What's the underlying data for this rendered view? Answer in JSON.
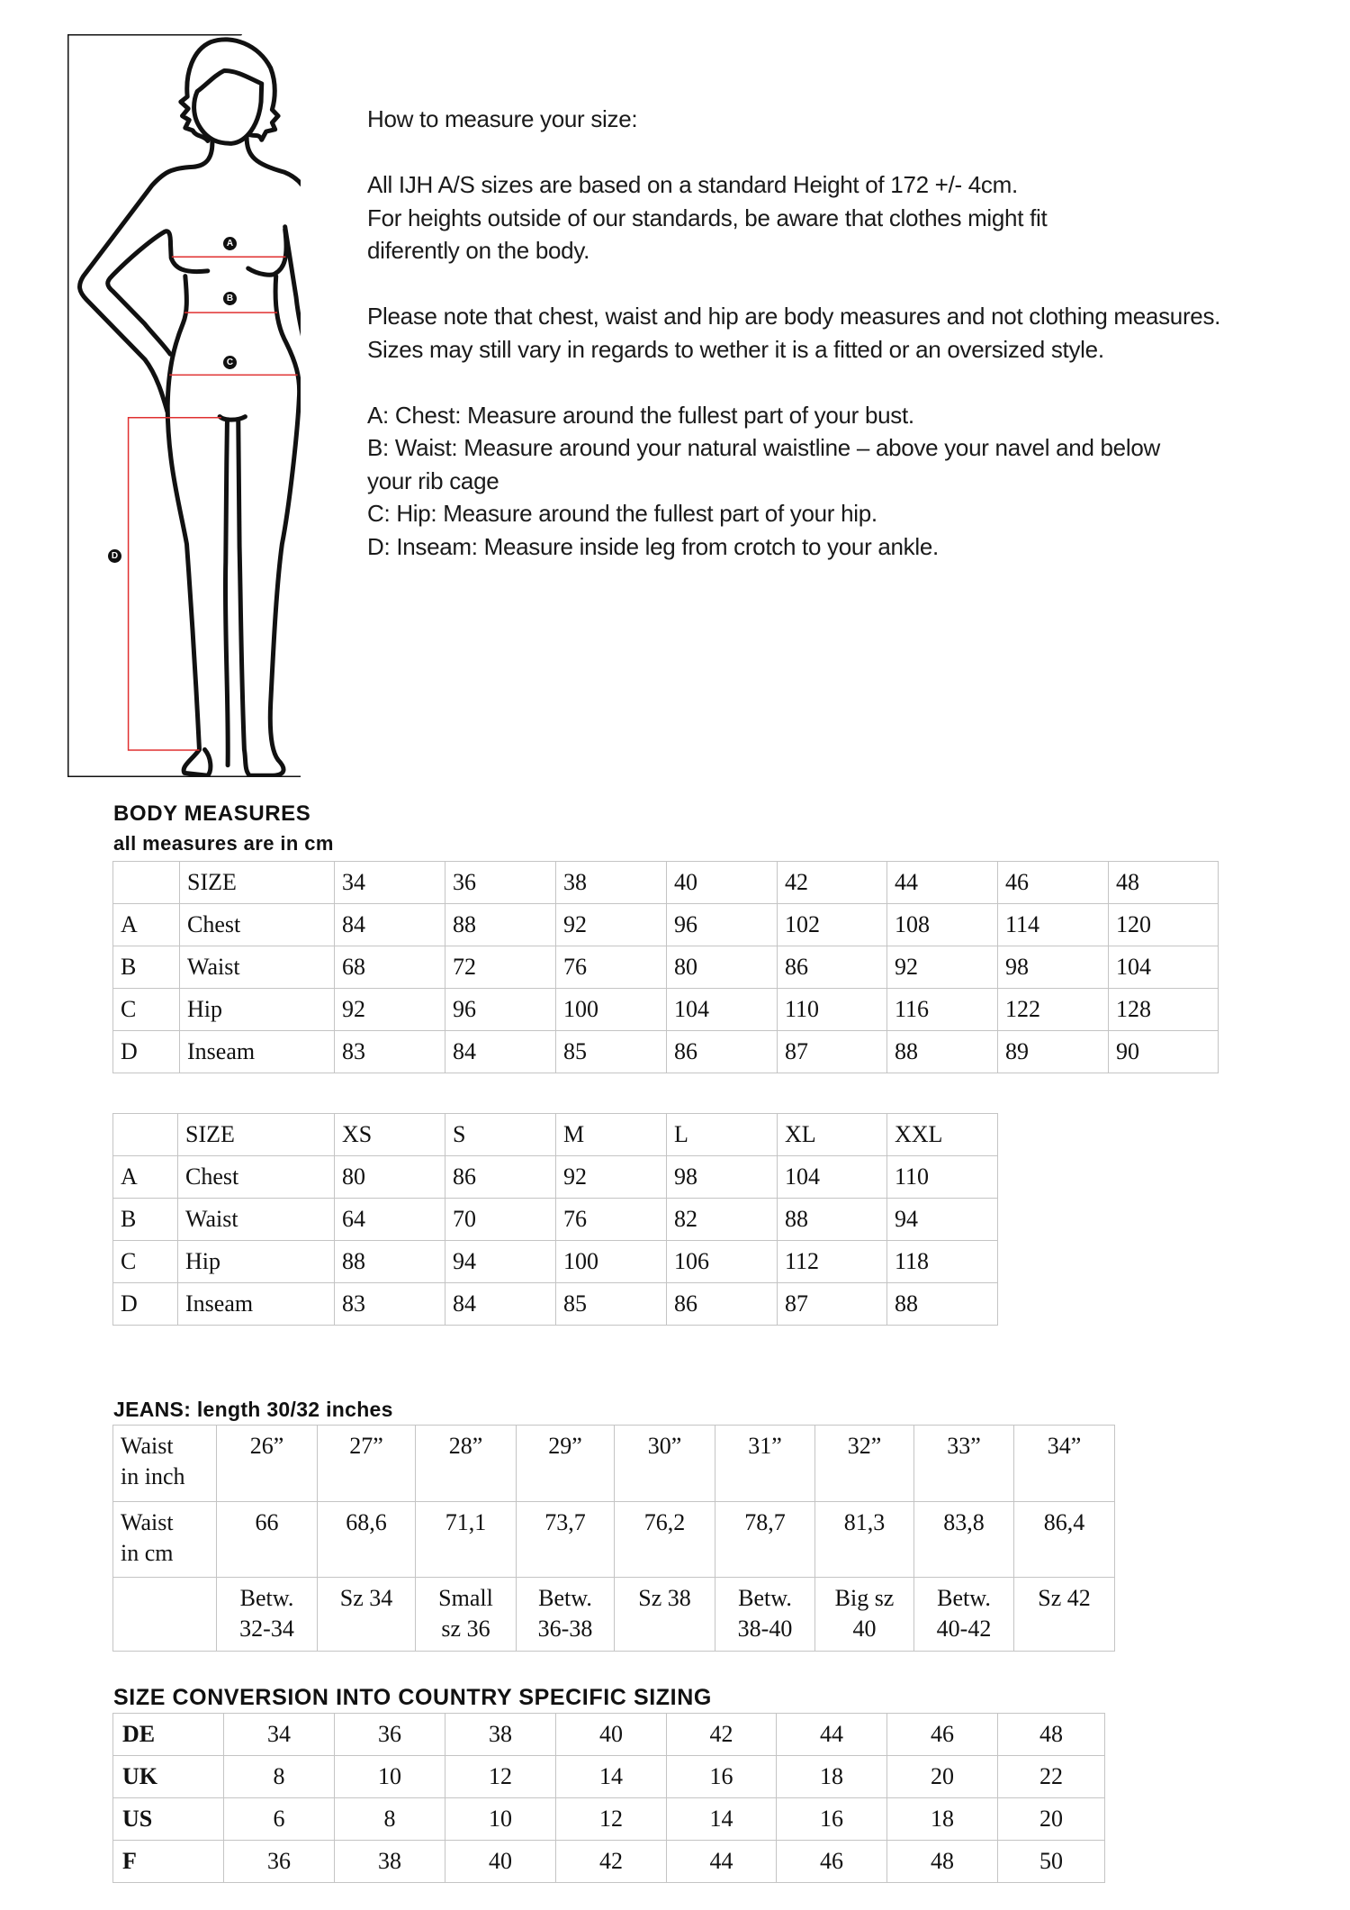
{
  "figure": {
    "badges": [
      "A",
      "B",
      "C",
      "D"
    ],
    "measure_line_color": "#e03030"
  },
  "intro": {
    "title": "How to measure your size:",
    "para1": [
      "All IJH A/S sizes are based on a standard Height of 172 +/- 4cm.",
      "For heights outside of our standards, be aware that clothes might fit",
      "diferently on the body."
    ],
    "para2": [
      "Please note that chest, waist and hip are body measures and not clothing measures.",
      "Sizes may still vary in regards to wether it is a fitted or an oversized style."
    ],
    "para3": [
      "A: Chest: Measure around the fullest part of your bust.",
      "B: Waist: Measure around your natural waistline – above your navel and below",
      "your rib cage",
      "C: Hip: Measure around the fullest part of your hip.",
      "D: Inseam: Measure inside leg from crotch to your ankle."
    ]
  },
  "body_measures": {
    "heading": "BODY MEASURES",
    "subheading": "all measures are in cm",
    "numeric_table": [
      [
        "",
        "SIZE",
        "34",
        "36",
        "38",
        "40",
        "42",
        "44",
        "46",
        "48"
      ],
      [
        "A",
        "Chest",
        "84",
        "88",
        "92",
        "96",
        "102",
        "108",
        "114",
        "120"
      ],
      [
        "B",
        "Waist",
        "68",
        "72",
        "76",
        "80",
        "86",
        "92",
        "98",
        "104"
      ],
      [
        "C",
        "Hip",
        "92",
        "96",
        "100",
        "104",
        "110",
        "116",
        "122",
        "128"
      ],
      [
        "D",
        "Inseam",
        "83",
        "84",
        "85",
        "86",
        "87",
        "88",
        "89",
        "90"
      ]
    ],
    "letter_table": [
      [
        "",
        "SIZE",
        "XS",
        "S",
        "M",
        "L",
        "XL",
        "XXL"
      ],
      [
        "A",
        "Chest",
        "80",
        "86",
        "92",
        "98",
        "104",
        "110"
      ],
      [
        "B",
        "Waist",
        "64",
        "70",
        "76",
        "82",
        "88",
        "94"
      ],
      [
        "C",
        "Hip",
        "88",
        "94",
        "100",
        "106",
        "112",
        "118"
      ],
      [
        "D",
        "Inseam",
        "83",
        "84",
        "85",
        "86",
        "87",
        "88"
      ]
    ]
  },
  "jeans": {
    "heading": "JEANS:  length 30/32 inches",
    "table": [
      [
        "Waist\nin inch",
        "26”",
        "27”",
        "28”",
        "29”",
        "30”",
        "31”",
        "32”",
        "33”",
        "34”"
      ],
      [
        "Waist\nin cm",
        "66",
        "68,6",
        "71,1",
        "73,7",
        "76,2",
        "78,7",
        "81,3",
        "83,8",
        "86,4"
      ],
      [
        "",
        "Betw.\n32-34",
        "Sz 34",
        "Small\nsz 36",
        "Betw.\n36-38",
        "Sz 38",
        "Betw.\n38-40",
        "Big sz\n40",
        "Betw.\n40-42",
        "Sz 42"
      ]
    ]
  },
  "conversion": {
    "heading": "SIZE CONVERSION INTO COUNTRY SPECIFIC SIZING",
    "table": [
      [
        "DE",
        "34",
        "36",
        "38",
        "40",
        "42",
        "44",
        "46",
        "48"
      ],
      [
        "UK",
        "8",
        "10",
        "12",
        "14",
        "16",
        "18",
        "20",
        "22"
      ],
      [
        "US",
        "6",
        "8",
        "10",
        "12",
        "14",
        "16",
        "18",
        "20"
      ],
      [
        "F",
        "36",
        "38",
        "40",
        "42",
        "44",
        "46",
        "48",
        "50"
      ]
    ]
  }
}
